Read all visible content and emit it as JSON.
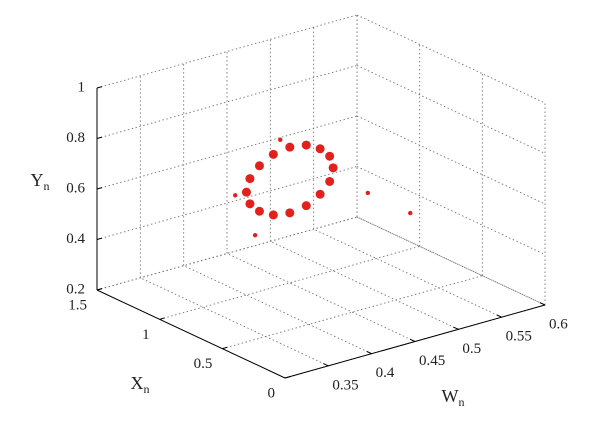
{
  "chart_data": {
    "type": "scatter3d",
    "xlabel": "Xn",
    "ylabel": "Yn",
    "wlabel": "Wn",
    "wlim": [
      0.3,
      0.6
    ],
    "wticks": [
      0.35,
      0.4,
      0.45,
      0.5,
      0.55,
      0.6
    ],
    "xlim": [
      0,
      1.5
    ],
    "xticks": [
      0,
      0.5,
      1,
      1.5
    ],
    "ylim": [
      0.2,
      1
    ],
    "yticks": [
      0.2,
      0.4,
      0.6,
      0.8,
      1
    ],
    "grid": true,
    "series": [
      {
        "color": "#e3201b",
        "w": [
          0.464,
          0.46,
          0.449,
          0.433,
          0.414,
          0.395,
          0.379,
          0.368,
          0.364,
          0.368,
          0.379,
          0.395,
          0.414,
          0.433,
          0.449,
          0.46,
          0.504,
          0.553,
          0.351,
          0.374,
          0.403
        ],
        "x": [
          0.75,
          0.75,
          0.75,
          0.75,
          0.75,
          0.75,
          0.75,
          0.75,
          0.75,
          0.75,
          0.75,
          0.75,
          0.75,
          0.75,
          0.75,
          0.75,
          0.75,
          0.75,
          0.75,
          0.75,
          0.75
        ],
        "y": [
          0.7,
          0.75,
          0.79,
          0.82,
          0.83,
          0.82,
          0.79,
          0.75,
          0.7,
          0.65,
          0.61,
          0.58,
          0.57,
          0.58,
          0.61,
          0.65,
          0.562,
          0.435,
          0.7,
          0.52,
          0.87
        ]
      }
    ]
  }
}
